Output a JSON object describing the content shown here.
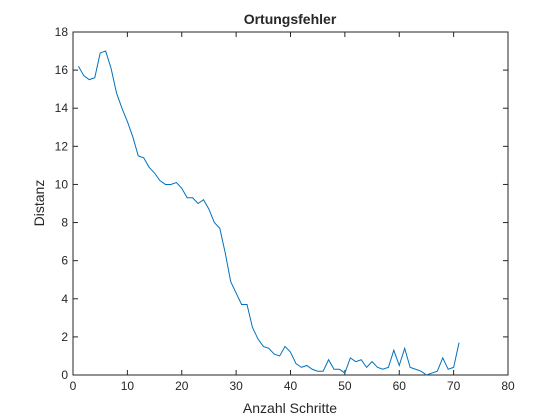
{
  "chart_data": {
    "type": "line",
    "title": "Ortungsfehler",
    "xlabel": "Anzahl Schritte",
    "ylabel": "Distanz",
    "xlim": [
      0,
      80
    ],
    "ylim": [
      0,
      18
    ],
    "xticks": [
      0,
      10,
      20,
      30,
      40,
      50,
      60,
      70,
      80
    ],
    "yticks": [
      0,
      2,
      4,
      6,
      8,
      10,
      12,
      14,
      16,
      18
    ],
    "grid": false,
    "line_color": "#0072BD",
    "series": [
      {
        "x": [
          1,
          2,
          3,
          4,
          5,
          6,
          7,
          8,
          9,
          10,
          11,
          12,
          13,
          14,
          15,
          16,
          17,
          18,
          19,
          20,
          21,
          22,
          23,
          24,
          25,
          26,
          27,
          28,
          29,
          30,
          31,
          32,
          33,
          34,
          35,
          36,
          37,
          38,
          39,
          40,
          41,
          42,
          43,
          44,
          45,
          46,
          47,
          48,
          49,
          50,
          51,
          52,
          53,
          54,
          55,
          56,
          57,
          58,
          59,
          60,
          61,
          62,
          63,
          64,
          65,
          66,
          67,
          68,
          69,
          70,
          71
        ],
        "y": [
          16.2,
          15.7,
          15.5,
          15.6,
          16.9,
          17.0,
          16.1,
          14.8,
          14.0,
          13.3,
          12.5,
          11.5,
          11.4,
          10.9,
          10.6,
          10.2,
          10.0,
          10.0,
          10.1,
          9.8,
          9.3,
          9.3,
          9.0,
          9.2,
          8.7,
          8.0,
          7.7,
          6.4,
          4.9,
          4.3,
          3.7,
          3.7,
          2.5,
          1.9,
          1.5,
          1.4,
          1.1,
          1.0,
          1.5,
          1.2,
          0.6,
          0.4,
          0.5,
          0.3,
          0.2,
          0.2,
          0.8,
          0.3,
          0.3,
          0.1,
          0.9,
          0.7,
          0.8,
          0.4,
          0.7,
          0.4,
          0.3,
          0.4,
          1.3,
          0.5,
          1.4,
          0.4,
          0.3,
          0.2,
          0.0,
          0.1,
          0.2,
          0.9,
          0.3,
          0.4,
          1.7
        ]
      }
    ]
  }
}
